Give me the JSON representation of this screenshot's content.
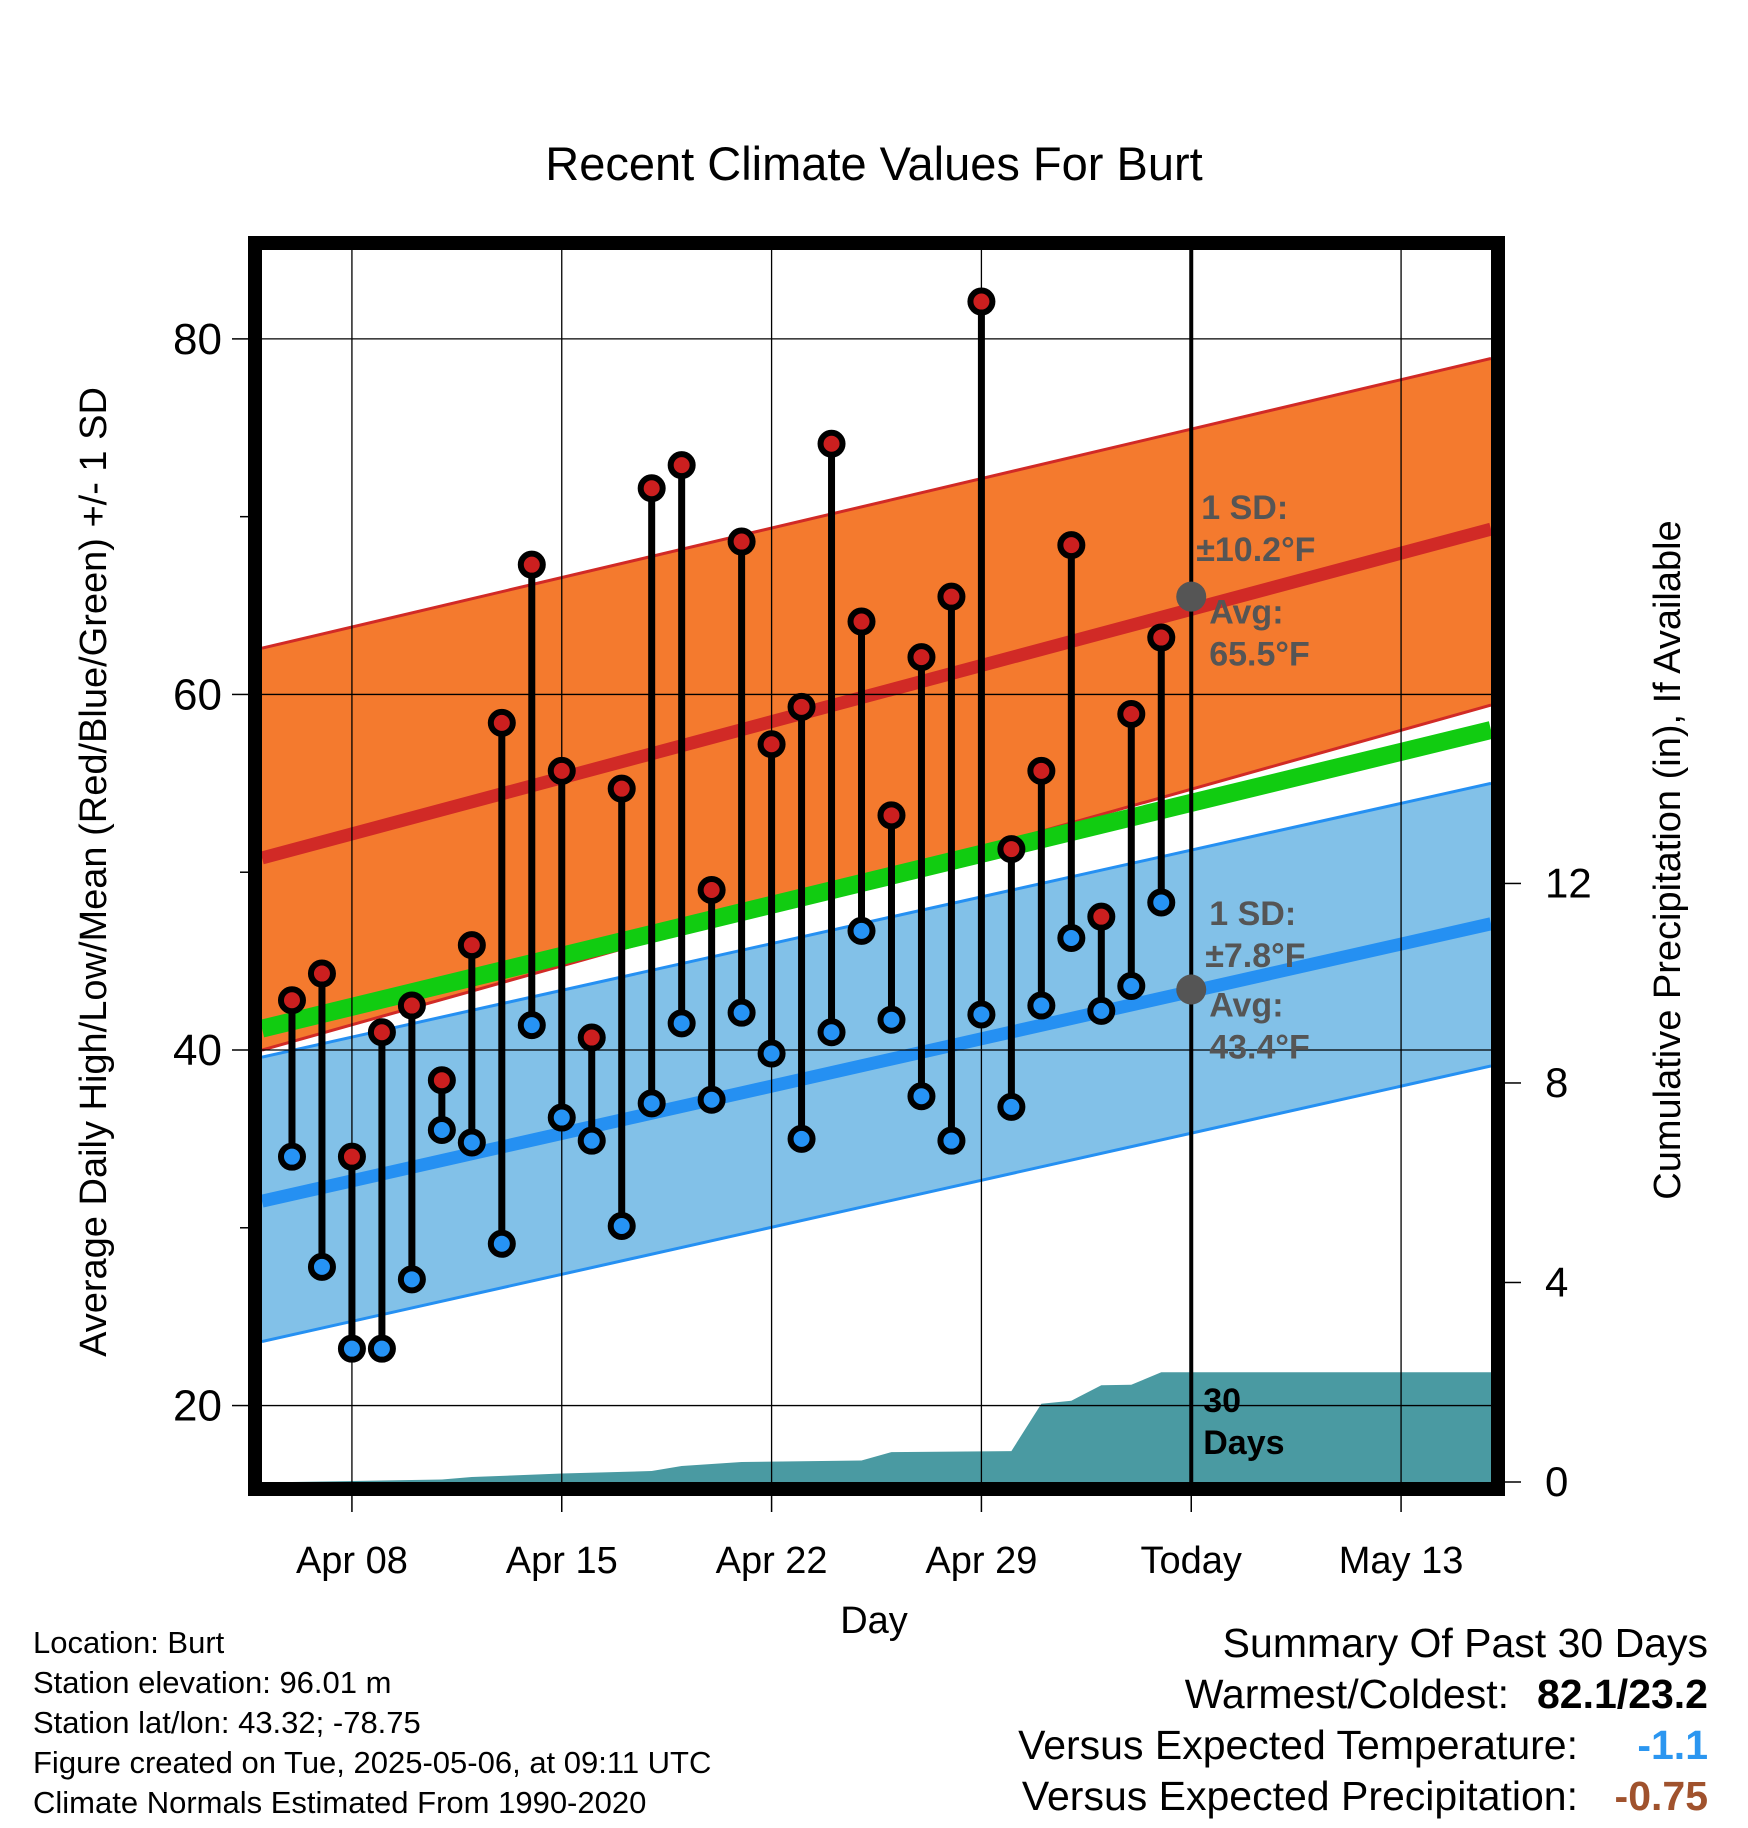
{
  "chart_data": {
    "type": "line",
    "title": "Recent Climate Values For Burt",
    "xlabel": "Day",
    "ylabel": "Average Daily High/Low/Mean (Red/Blue/Green) +/- 1 SD",
    "y2label": "Cumulative Precipitation (in), If Available",
    "ylim": [
      15.7,
      85
    ],
    "y_ticks": [
      20,
      40,
      60,
      80
    ],
    "y2lim": [
      0,
      24.7
    ],
    "y2_ticks": [
      0,
      4,
      8,
      12
    ],
    "x_range": [
      "2025-04-05",
      "2025-05-16"
    ],
    "x_ticks": [
      {
        "date": "2025-04-08",
        "label": "Apr 08"
      },
      {
        "date": "2025-04-15",
        "label": "Apr 15"
      },
      {
        "date": "2025-04-22",
        "label": "Apr 22"
      },
      {
        "date": "2025-04-29",
        "label": "Apr 29"
      },
      {
        "date": "2025-05-06",
        "label": "Today"
      },
      {
        "date": "2025-05-13",
        "label": "May 13"
      }
    ],
    "grid": true,
    "today": "2025-05-06",
    "dates": [
      "2025-04-06",
      "2025-04-07",
      "2025-04-08",
      "2025-04-09",
      "2025-04-10",
      "2025-04-11",
      "2025-04-12",
      "2025-04-13",
      "2025-04-14",
      "2025-04-15",
      "2025-04-16",
      "2025-04-17",
      "2025-04-18",
      "2025-04-19",
      "2025-04-20",
      "2025-04-21",
      "2025-04-22",
      "2025-04-23",
      "2025-04-24",
      "2025-04-25",
      "2025-04-26",
      "2025-04-27",
      "2025-04-28",
      "2025-04-29",
      "2025-04-30",
      "2025-05-01",
      "2025-05-02",
      "2025-05-03",
      "2025-05-04",
      "2025-05-05"
    ],
    "series": [
      {
        "name": "High",
        "color": "#cc1f1f",
        "values": [
          42.8,
          44.3,
          34.0,
          41.0,
          42.5,
          38.3,
          45.9,
          58.4,
          67.3,
          55.7,
          40.7,
          54.7,
          71.6,
          72.9,
          49.0,
          68.6,
          57.2,
          59.3,
          74.1,
          64.1,
          53.2,
          62.1,
          65.5,
          82.1,
          51.3,
          55.7,
          68.4,
          47.5,
          58.9,
          63.2
        ]
      },
      {
        "name": "Low",
        "color": "#2693f5",
        "values": [
          34.0,
          27.8,
          23.2,
          23.2,
          27.1,
          35.5,
          34.8,
          29.1,
          41.4,
          36.2,
          34.9,
          30.1,
          37.0,
          41.5,
          37.2,
          42.1,
          39.8,
          35.0,
          41.0,
          46.7,
          41.7,
          37.4,
          34.9,
          42.0,
          36.8,
          42.5,
          46.3,
          42.2,
          43.6,
          48.3
        ]
      }
    ],
    "normals": {
      "high_mean": [
        50.8,
        69.3
      ],
      "high_sd_upper": [
        62.6,
        78.9
      ],
      "high_sd_lower": [
        40.0,
        59.4
      ],
      "mean": [
        41.2,
        58.0
      ],
      "low_mean": [
        31.5,
        47.1
      ],
      "low_sd_upper": [
        39.6,
        55.0
      ],
      "low_sd_lower": [
        23.6,
        39.1
      ],
      "colors": {
        "high_band": "#f47a2e",
        "high_line": "#d12a26",
        "mean_line": "#11cc11",
        "low_band": "#82c1e8",
        "low_line": "#2590f2",
        "precip": "#4a9aa2"
      }
    },
    "precipitation": {
      "dates": [
        "2025-04-06",
        "2025-04-11",
        "2025-04-12",
        "2025-04-15",
        "2025-04-18",
        "2025-04-19",
        "2025-04-21",
        "2025-04-25",
        "2025-04-26",
        "2025-04-30",
        "2025-05-01",
        "2025-05-02",
        "2025-05-03",
        "2025-05-04",
        "2025-05-05",
        "2025-05-16"
      ],
      "values": [
        0.0,
        0.05,
        0.1,
        0.17,
        0.22,
        0.32,
        0.4,
        0.43,
        0.6,
        0.62,
        1.57,
        1.63,
        1.94,
        1.95,
        2.2,
        2.2
      ]
    },
    "annotations": {
      "high_sd_label": "1 SD:",
      "high_sd_value": "±10.2°F",
      "high_avg_label": "Avg:",
      "high_avg_value": "65.5°F",
      "high_avg": 65.5,
      "low_sd_label": "1 SD:",
      "low_sd_value": "±7.8°F",
      "low_avg_label": "Avg:",
      "low_avg_value": "43.4°F",
      "low_avg": 43.4,
      "days_label_1": "30",
      "days_label_2": "Days"
    }
  },
  "station_info": [
    "Location: Burt",
    "Station elevation: 96.01 m",
    "Station lat/lon: 43.32; -78.75",
    "Figure created on Tue, 2025-05-06, at 09:11 UTC",
    "Climate Normals Estimated From 1990-2020"
  ],
  "summary": {
    "title": "Summary Of Past 30 Days",
    "warmest_label": "Warmest/Coldest:",
    "warmest_value": "82.1/23.2",
    "temp_label": "Versus Expected Temperature:",
    "temp_value": "-1.1",
    "temp_color": "#2b96f0",
    "precip_label": "Versus Expected Precipitation:",
    "precip_value": "-0.75",
    "precip_color": "#a0522d"
  }
}
